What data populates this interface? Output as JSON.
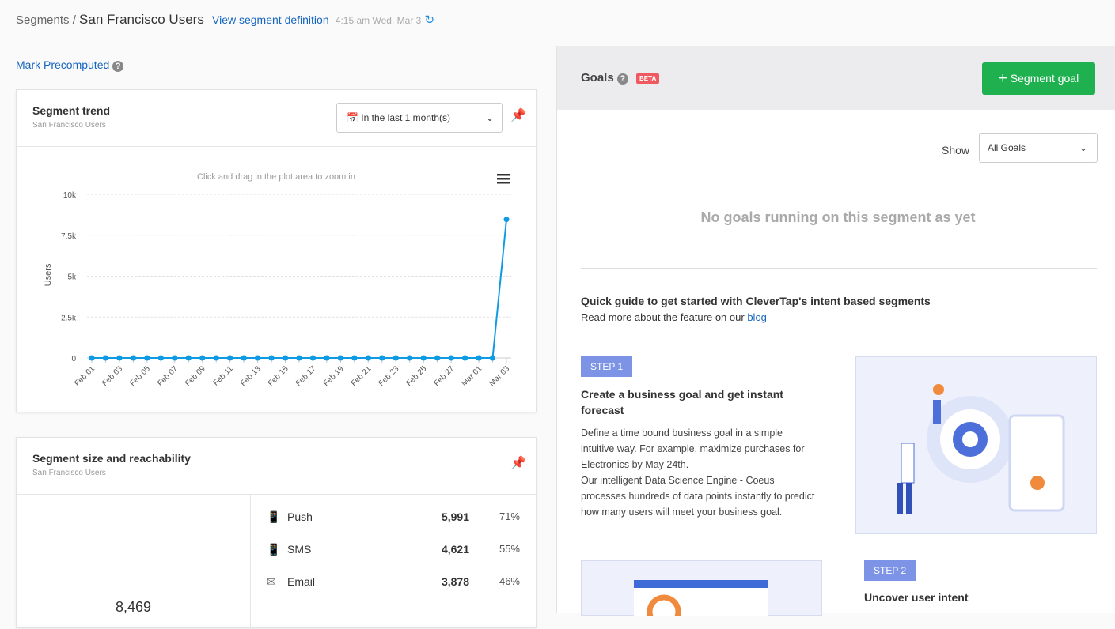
{
  "header": {
    "breadcrumb": "Segments /",
    "segment": "San Francisco Users",
    "link": "View segment definition",
    "timestamp": "4:15 am Wed, Mar 3"
  },
  "mark_precomputed": "Mark Precomputed",
  "trend_card": {
    "title": "Segment trend",
    "subtitle": "San Francisco Users",
    "range": "In the last 1 month(s)"
  },
  "chart_data": {
    "type": "line",
    "subtitle": "Click and drag in the plot area to zoom in",
    "y_label": "Users",
    "categories": [
      "Feb 01",
      null,
      "Feb 03",
      null,
      "Feb 05",
      null,
      "Feb 07",
      null,
      "Feb 09",
      null,
      "Feb 11",
      null,
      "Feb 13",
      null,
      "Feb 15",
      null,
      "Feb 17",
      null,
      "Feb 19",
      null,
      "Feb 21",
      null,
      "Feb 23",
      null,
      "Feb 25",
      null,
      "Feb 27",
      null,
      "Mar 01",
      null,
      "Mar 03"
    ],
    "series": [
      {
        "name": "Users",
        "color": "#0f9be3",
        "values": [
          0,
          0,
          0,
          0,
          0,
          0,
          0,
          0,
          0,
          0,
          0,
          0,
          0,
          0,
          0,
          0,
          0,
          0,
          0,
          0,
          0,
          0,
          0,
          0,
          0,
          0,
          0,
          0,
          0,
          0,
          8469
        ]
      }
    ],
    "ylim": [
      0,
      10000
    ],
    "yticks": [
      0,
      {
        "value": 2500,
        "label": "2.5k"
      },
      {
        "value": 5000,
        "label": "5k"
      },
      {
        "value": 7500,
        "label": "7.5k"
      },
      {
        "value": 10000,
        "label": "10k"
      }
    ],
    "grid": true
  },
  "reach_card": {
    "title": "Segment size and reachability",
    "subtitle": "San Francisco Users",
    "total": "8,469",
    "channels": [
      {
        "name": "Push",
        "count": "5,991",
        "percent": "71%"
      },
      {
        "name": "SMS",
        "count": "4,621",
        "percent": "55%"
      },
      {
        "name": "Email",
        "count": "3,878",
        "percent": "46%"
      }
    ]
  },
  "goals": {
    "title": "Goals",
    "badge": "BETA",
    "button": "Segment goal",
    "show_label": "Show",
    "show_value": "All Goals",
    "empty": "No goals running on this segment as yet",
    "guide_title": "Quick guide to get started with CleverTap's intent based segments",
    "guide_text": "Read more about the feature on our",
    "guide_link": "blog",
    "steps": [
      {
        "badge": "STEP 1",
        "title": "Create a business goal and get instant forecast",
        "paragraphs": [
          "Define a time bound business goal in a simple intuitive way. For example, maximize purchases for Electronics by May 24th.",
          "Our intelligent Data Science Engine - Coeus processes hundreds of data points instantly to predict how many users will meet your business goal."
        ]
      },
      {
        "badge": "STEP 2",
        "title": "Uncover user intent"
      }
    ]
  }
}
